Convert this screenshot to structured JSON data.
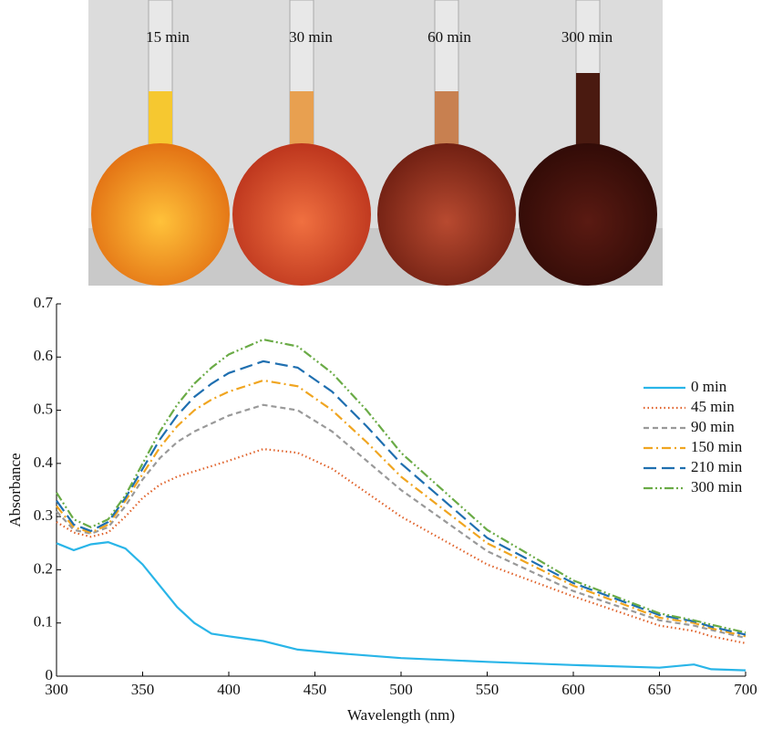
{
  "photo": {
    "labels": [
      "15 min",
      "30 min",
      "60 min",
      "300 min"
    ]
  },
  "chart_data": {
    "type": "line",
    "xlabel": "Wavelength (nm)",
    "ylabel": "Absorbance",
    "x": [
      300,
      310,
      320,
      330,
      340,
      350,
      360,
      370,
      380,
      390,
      400,
      420,
      440,
      460,
      480,
      500,
      550,
      600,
      650,
      670,
      680,
      700
    ],
    "series": [
      {
        "name": "0 min",
        "color": "#29b5e8",
        "dash": "solid",
        "values": [
          0.25,
          0.237,
          0.248,
          0.252,
          0.24,
          0.21,
          0.17,
          0.13,
          0.1,
          0.08,
          0.075,
          0.066,
          0.05,
          0.044,
          0.039,
          0.034,
          0.027,
          0.021,
          0.016,
          0.022,
          0.013,
          0.011
        ]
      },
      {
        "name": "45 min",
        "color": "#e0622a",
        "dash": "dotted",
        "values": [
          0.29,
          0.27,
          0.262,
          0.27,
          0.3,
          0.335,
          0.36,
          0.375,
          0.385,
          0.395,
          0.405,
          0.427,
          0.42,
          0.39,
          0.345,
          0.3,
          0.21,
          0.15,
          0.095,
          0.085,
          0.075,
          0.062
        ]
      },
      {
        "name": "90 min",
        "color": "#999999",
        "dash": "dashed",
        "values": [
          0.31,
          0.275,
          0.268,
          0.28,
          0.32,
          0.37,
          0.41,
          0.44,
          0.46,
          0.475,
          0.49,
          0.51,
          0.5,
          0.46,
          0.405,
          0.35,
          0.235,
          0.16,
          0.105,
          0.095,
          0.087,
          0.072
        ]
      },
      {
        "name": "150 min",
        "color": "#f0a520",
        "dash": "dashdot",
        "values": [
          0.32,
          0.28,
          0.27,
          0.285,
          0.33,
          0.38,
          0.43,
          0.47,
          0.5,
          0.52,
          0.535,
          0.556,
          0.545,
          0.5,
          0.44,
          0.375,
          0.25,
          0.17,
          0.11,
          0.1,
          0.09,
          0.075
        ]
      },
      {
        "name": "210 min",
        "color": "#1f6fb0",
        "dash": "longdash",
        "values": [
          0.33,
          0.285,
          0.273,
          0.29,
          0.335,
          0.39,
          0.445,
          0.49,
          0.525,
          0.55,
          0.57,
          0.592,
          0.58,
          0.535,
          0.47,
          0.4,
          0.26,
          0.175,
          0.115,
          0.103,
          0.093,
          0.078
        ]
      },
      {
        "name": "300 min",
        "color": "#6aab46",
        "dash": "dashdotdot",
        "values": [
          0.345,
          0.295,
          0.28,
          0.295,
          0.34,
          0.4,
          0.46,
          0.51,
          0.55,
          0.58,
          0.605,
          0.633,
          0.62,
          0.57,
          0.5,
          0.42,
          0.275,
          0.18,
          0.118,
          0.105,
          0.097,
          0.082
        ]
      }
    ],
    "xlim": [
      300,
      700
    ],
    "xticks": [
      300,
      350,
      400,
      450,
      500,
      550,
      600,
      650,
      700
    ],
    "ylim": [
      0,
      0.7
    ],
    "yticks": [
      0,
      0.1,
      0.2,
      0.3,
      0.4,
      0.5,
      0.6,
      0.7
    ],
    "grid": false,
    "legend": "right"
  }
}
